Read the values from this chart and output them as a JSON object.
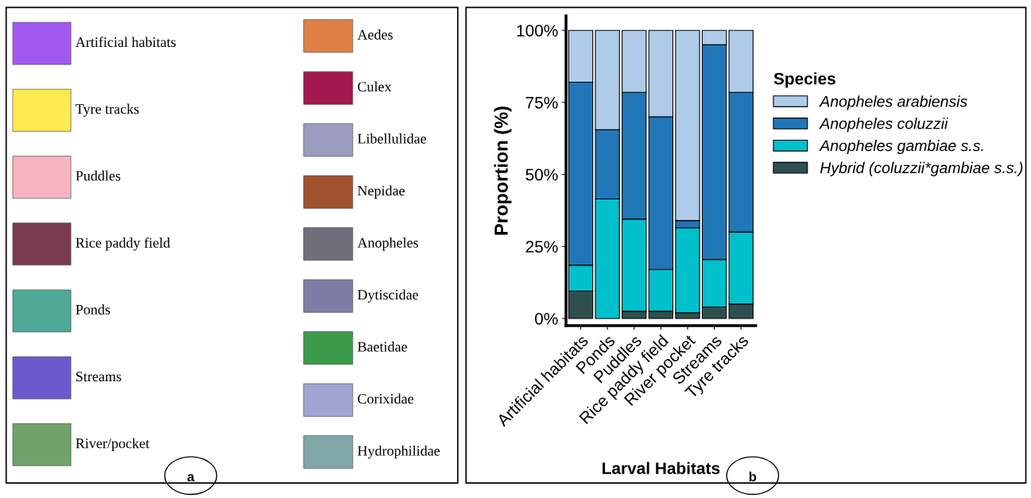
{
  "chart_data": [
    {
      "type": "other",
      "categories": [
        "Artificial habitats",
        "Tyre tracks",
        "Puddles",
        "Rice paddy field",
        "Ponds",
        "Streams",
        "River/pocket"
      ],
      "y2_categories": [
        "Aedes",
        "Culex",
        "Libellulidae",
        "Nepidae",
        "Anopheles",
        "Dytiscidae",
        "Baetidae",
        "Corixidae",
        "Hydrophilidae"
      ],
      "colors": [
        "#a259f0",
        "#fce94f",
        "#f7b3c2",
        "#7a3b4e",
        "#4fa896",
        "#6a5acd",
        "#6fa36a",
        "#e07f45",
        "#a3184f",
        "#9b9bc0",
        "#a0522d",
        "#6e6f78",
        "#7d7da8",
        "#3a9a4a",
        "#a0a6d0",
        "#7fa7a7"
      ],
      "annotations": [
        "a"
      ]
    },
    {
      "type": "bar",
      "stacked": true,
      "xlabel": "Larval Habitats",
      "ylabel": "Proportion (%)",
      "legend_title": "Species",
      "legend": "right",
      "categories": [
        "Artificial habitats",
        "Ponds",
        "Puddles",
        "Rice paddy field",
        "River pocket",
        "Streams",
        "Tyre tracks"
      ],
      "ylim": [
        -2.5,
        105
      ],
      "yticks": [
        {
          "value": 0,
          "label": "0%"
        },
        {
          "value": 25,
          "label": "25%"
        },
        {
          "value": 50,
          "label": "50%"
        },
        {
          "value": 75,
          "label": "75%"
        },
        {
          "value": 100,
          "label": "100%"
        }
      ],
      "series": [
        {
          "name": "Hybrid (coluzzii*gambiae s.s.)",
          "color": "#2f4f4f",
          "values": [
            9.5,
            null,
            2.5,
            2.5,
            2,
            4,
            5
          ]
        },
        {
          "name": "Anopheles gambiae s.s.",
          "color": "#00c0cc",
          "values": [
            9,
            41.5,
            32,
            14.5,
            29.5,
            16.5,
            25
          ]
        },
        {
          "name": "Anopheles coluzzii",
          "color": "#2176b8",
          "values": [
            63.5,
            24,
            44,
            53,
            2.5,
            74.5,
            48.5
          ]
        },
        {
          "name": "Anopheles arabiensis",
          "color": "#aecbea",
          "values": [
            18,
            34.5,
            21.5,
            30,
            66,
            5,
            21.5
          ]
        }
      ],
      "annotations": [
        "b"
      ]
    }
  ]
}
